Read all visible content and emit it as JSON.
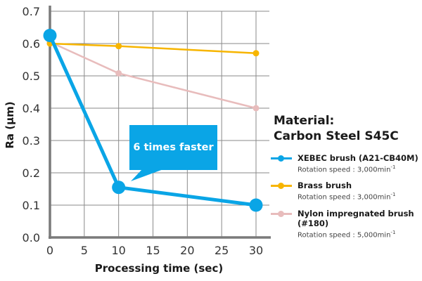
{
  "chart_data": {
    "type": "line",
    "title": "",
    "xlabel": "Processing time (sec)",
    "ylabel": "Ra (μm)",
    "xlim": [
      0,
      30
    ],
    "ylim": [
      0.0,
      0.7
    ],
    "xticks": [
      "0",
      "5",
      "10",
      "15",
      "20",
      "25",
      "30"
    ],
    "yticks": [
      "0.0",
      "0.1",
      "0.2",
      "0.3",
      "0.4",
      "0.5",
      "0.6",
      "0.7"
    ],
    "grid": true,
    "legend_position": "right",
    "series": [
      {
        "name": "XEBEC brush (A21-CB40M)",
        "subtitle": "Rotation speed : 3,000min",
        "color": "#0aa5e6",
        "x": [
          0,
          10,
          30
        ],
        "y": [
          0.625,
          0.155,
          0.1
        ]
      },
      {
        "name": "Brass brush",
        "subtitle": "Rotation speed : 3,000min",
        "color": "#f7b500",
        "x": [
          0,
          10,
          30
        ],
        "y": [
          0.6,
          0.592,
          0.57
        ]
      },
      {
        "name": "Nylon impregnated brush (#180)",
        "subtitle": "Rotation speed : 5,000min",
        "color": "#e8bcbc",
        "x": [
          0,
          10,
          30
        ],
        "y": [
          0.605,
          0.508,
          0.4
        ]
      }
    ],
    "annotations": [
      {
        "text": "6 times faster",
        "color": "#0aa5e6"
      }
    ]
  },
  "material": {
    "line1": "Material:",
    "line2": "Carbon Steel S45C"
  },
  "legend_exponent": "-1"
}
